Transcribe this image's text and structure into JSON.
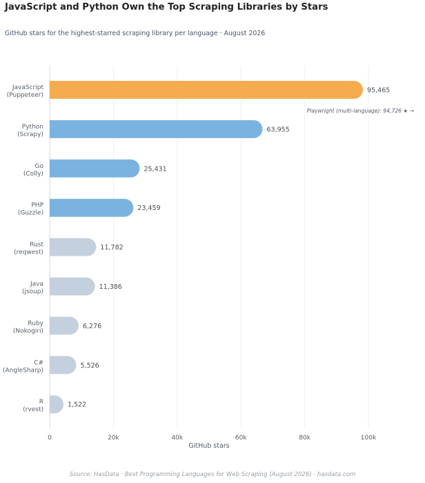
{
  "chart_data": {
    "type": "bar",
    "orientation": "horizontal",
    "title": "JavaScript and Python Own the Top Scraping Libraries by Stars",
    "subtitle": "GitHub stars for the highest-starred scraping library per language · August 2026",
    "xlabel": "GitHub stars",
    "ylabel": "",
    "xlim": [
      0,
      115000
    ],
    "xticks": [
      0,
      20000,
      40000,
      60000,
      80000,
      100000
    ],
    "xtick_labels": [
      "0",
      "20k",
      "40k",
      "60k",
      "80k",
      "100k"
    ],
    "grid": "vertical",
    "categories": [
      {
        "language": "JavaScript",
        "library": "(Puppeteer)"
      },
      {
        "language": "Python",
        "library": "(Scrapy)"
      },
      {
        "language": "Go",
        "library": "(Colly)"
      },
      {
        "language": "PHP",
        "library": "(Guzzle)"
      },
      {
        "language": "Rust",
        "library": "(reqwest)"
      },
      {
        "language": "Java",
        "library": "(jsoup)"
      },
      {
        "language": "Ruby",
        "library": "(Nokogiri)"
      },
      {
        "language": "C#",
        "library": "(AngleSharp)"
      },
      {
        "language": "R",
        "library": "(rvest)"
      }
    ],
    "values": [
      95465,
      63955,
      25431,
      23459,
      11782,
      11386,
      6276,
      5526,
      1522
    ],
    "value_labels": [
      "95,465",
      "63,955",
      "25,431",
      "23,459",
      "11,782",
      "11,386",
      "6,276",
      "5,526",
      "1,522"
    ],
    "bar_colors": [
      "#f4ac4f",
      "#7bb3e0",
      "#7bb3e0",
      "#7bb3e0",
      "#c5d0de",
      "#c5d0de",
      "#c5d0de",
      "#c5d0de",
      "#c5d0de"
    ],
    "annotation": "Playwright (multi-language): 94,726 ★ →",
    "source": "Source: HasData  ·  Best Programming Languages for Web Scraping (August 2026)  ·  hasdata.com"
  }
}
